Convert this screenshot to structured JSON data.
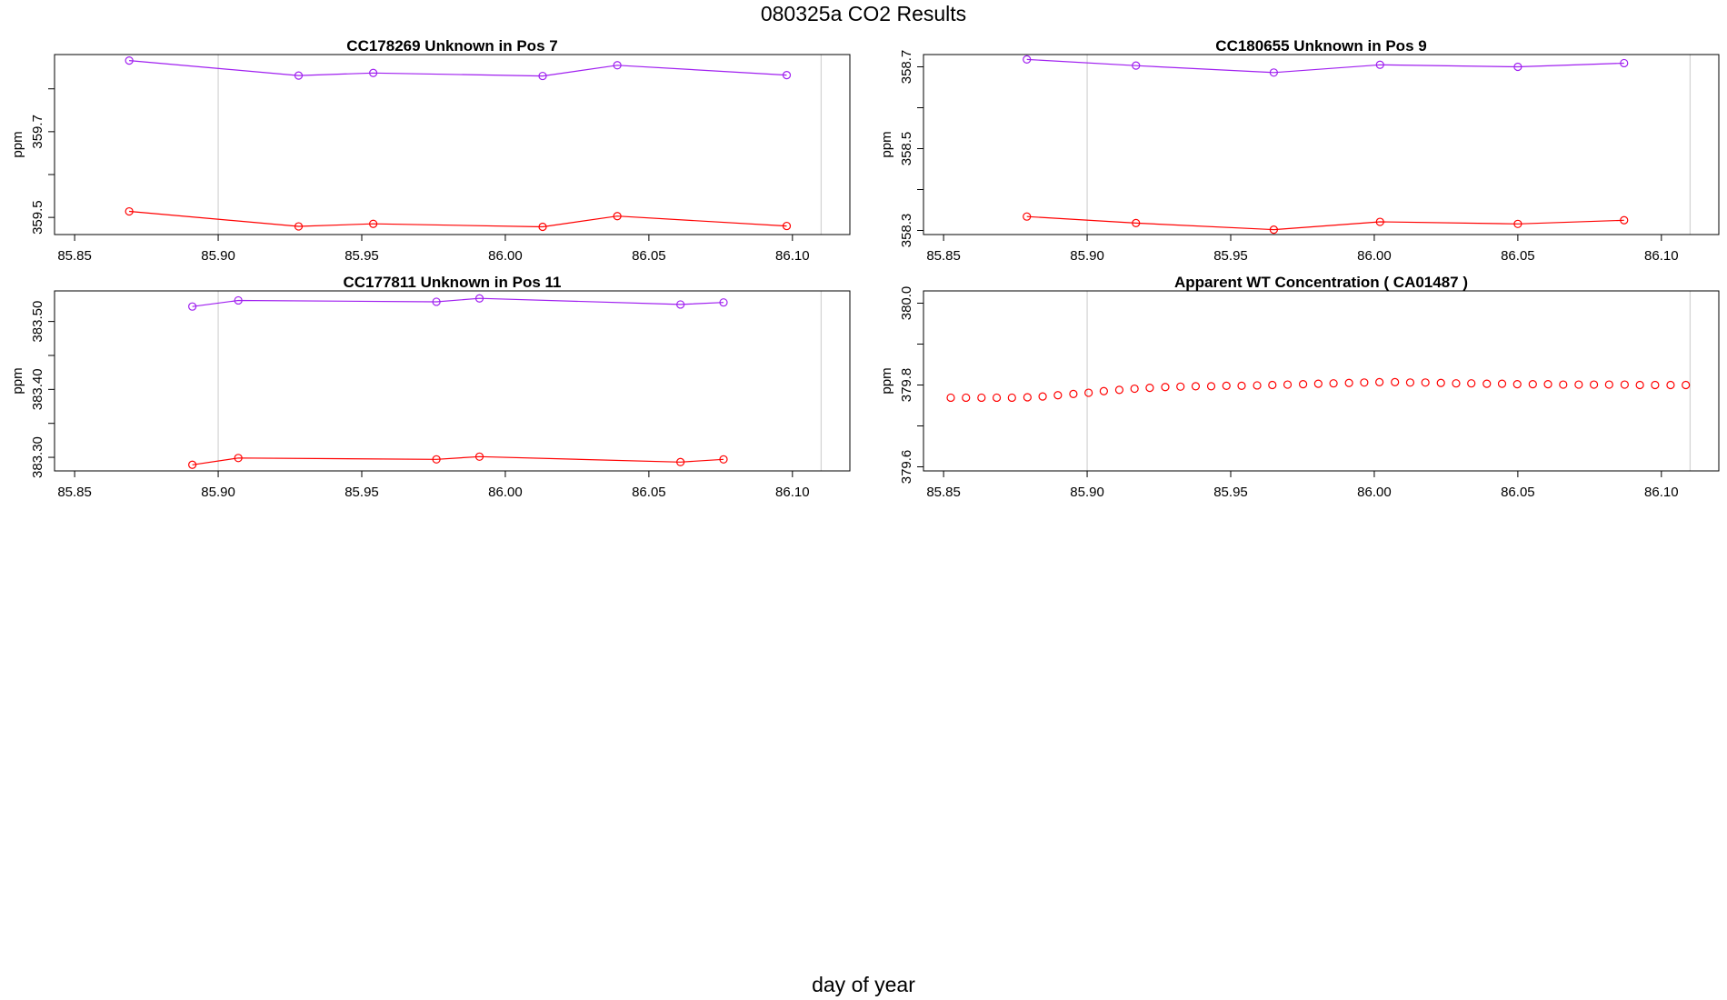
{
  "figure": {
    "title": "080325a  CO2 Results",
    "xlabel": "day of year"
  },
  "chart_data": [
    {
      "type": "line",
      "title": "CC178269    Unknown in Pos 7",
      "xlabel": "",
      "ylabel": "ppm",
      "xlim": [
        85.843,
        86.12
      ],
      "ylim": [
        359.46,
        359.88
      ],
      "xticks": [
        "85.85",
        "85.90",
        "85.95",
        "86.00",
        "86.05",
        "86.10"
      ],
      "xtick_values": [
        85.85,
        85.9,
        85.95,
        86.0,
        86.05,
        86.1
      ],
      "yticks": [
        359.5,
        359.6,
        359.7,
        359.8
      ],
      "ytick_labels": [
        "359.5",
        "",
        "359.7",
        ""
      ],
      "vlines": [
        85.9,
        86.11
      ],
      "series": [
        {
          "name": "upper",
          "color": "#a020f0",
          "x": [
            85.869,
            85.928,
            85.954,
            86.013,
            86.039,
            86.098
          ],
          "y": [
            359.866,
            359.831,
            359.837,
            359.83,
            359.855,
            359.832
          ]
        },
        {
          "name": "lower",
          "color": "#ff0000",
          "x": [
            85.869,
            85.928,
            85.954,
            86.013,
            86.039,
            86.098
          ],
          "y": [
            359.514,
            359.479,
            359.485,
            359.478,
            359.503,
            359.48
          ]
        }
      ]
    },
    {
      "type": "line",
      "title": "CC180655    Unknown in Pos 9",
      "xlabel": "",
      "ylabel": "ppm",
      "xlim": [
        85.843,
        86.12
      ],
      "ylim": [
        358.29,
        358.73
      ],
      "xticks": [
        "85.85",
        "85.90",
        "85.95",
        "86.00",
        "86.05",
        "86.10"
      ],
      "xtick_values": [
        85.85,
        85.9,
        85.95,
        86.0,
        86.05,
        86.1
      ],
      "yticks": [
        358.3,
        358.4,
        358.5,
        358.6,
        358.7
      ],
      "ytick_labels": [
        "358.3",
        "",
        "358.5",
        "",
        "358.7"
      ],
      "vlines": [
        85.9,
        86.11
      ],
      "series": [
        {
          "name": "upper",
          "color": "#a020f0",
          "x": [
            85.879,
            85.917,
            85.965,
            86.002,
            86.05,
            86.087
          ],
          "y": [
            358.718,
            358.703,
            358.686,
            358.705,
            358.7,
            358.709
          ]
        },
        {
          "name": "lower",
          "color": "#ff0000",
          "x": [
            85.879,
            85.917,
            85.965,
            86.002,
            86.05,
            86.087
          ],
          "y": [
            358.334,
            358.318,
            358.302,
            358.321,
            358.316,
            358.325
          ]
        }
      ]
    },
    {
      "type": "line",
      "title": "CC177811    Unknown in Pos 11",
      "xlabel": "",
      "ylabel": "ppm",
      "xlim": [
        85.843,
        86.12
      ],
      "ylim": [
        383.28,
        383.545
      ],
      "xticks": [
        "85.85",
        "85.90",
        "85.95",
        "86.00",
        "86.05",
        "86.10"
      ],
      "xtick_values": [
        85.85,
        85.9,
        85.95,
        86.0,
        86.05,
        86.1
      ],
      "yticks": [
        383.3,
        383.35,
        383.4,
        383.45,
        383.5
      ],
      "ytick_labels": [
        "383.30",
        "",
        "383.40",
        "",
        "383.50"
      ],
      "vlines": [
        85.9,
        86.11
      ],
      "series": [
        {
          "name": "upper",
          "color": "#a020f0",
          "x": [
            85.891,
            85.907,
            85.976,
            85.991,
            86.061,
            86.076
          ],
          "y": [
            383.522,
            383.531,
            383.529,
            383.534,
            383.525,
            383.528
          ]
        },
        {
          "name": "lower",
          "color": "#ff0000",
          "x": [
            85.891,
            85.907,
            85.976,
            85.991,
            86.061,
            86.076
          ],
          "y": [
            383.289,
            383.299,
            383.297,
            383.301,
            383.293,
            383.297
          ]
        }
      ]
    },
    {
      "type": "scatter",
      "title": "Apparent WT Concentration ( CA01487 )",
      "xlabel": "",
      "ylabel": "ppm",
      "xlim": [
        85.843,
        86.12
      ],
      "ylim": [
        379.59,
        380.03
      ],
      "xticks": [
        "85.85",
        "85.90",
        "85.95",
        "86.00",
        "86.05",
        "86.10"
      ],
      "xtick_values": [
        85.85,
        85.9,
        85.95,
        86.0,
        86.05,
        86.1
      ],
      "yticks": [
        379.6,
        379.7,
        379.8,
        379.9,
        380.0
      ],
      "ytick_labels": [
        "379.6",
        "",
        "379.8",
        "",
        "380.0"
      ],
      "vlines": [
        85.9,
        86.11
      ],
      "series": [
        {
          "name": "WT",
          "color": "#ff0000",
          "x": [
            85.8525,
            85.8578,
            85.8632,
            85.8685,
            85.8738,
            85.8792,
            85.8845,
            85.8898,
            85.8952,
            85.9005,
            85.9058,
            85.9112,
            85.9165,
            85.9218,
            85.9272,
            85.9325,
            85.9378,
            85.9432,
            85.9485,
            85.9538,
            85.9592,
            85.9645,
            85.9698,
            85.9752,
            85.9805,
            85.9858,
            85.9912,
            85.9965,
            86.0018,
            86.0072,
            86.0125,
            86.0178,
            86.0232,
            86.0285,
            86.0338,
            86.0392,
            86.0445,
            86.0498,
            86.0552,
            86.0605,
            86.0658,
            86.0712,
            86.0765,
            86.0818,
            86.0872,
            86.0925,
            86.0978,
            86.1032,
            86.1085
          ],
          "y": [
            379.769,
            379.769,
            379.769,
            379.769,
            379.769,
            379.77,
            379.772,
            379.775,
            379.778,
            379.781,
            379.785,
            379.788,
            379.791,
            379.793,
            379.795,
            379.796,
            379.797,
            379.797,
            379.798,
            379.798,
            379.799,
            379.8,
            379.801,
            379.802,
            379.803,
            379.804,
            379.805,
            379.806,
            379.807,
            379.807,
            379.806,
            379.806,
            379.805,
            379.804,
            379.804,
            379.803,
            379.803,
            379.802,
            379.802,
            379.802,
            379.801,
            379.801,
            379.801,
            379.801,
            379.801,
            379.8,
            379.8,
            379.8,
            379.8
          ]
        }
      ]
    }
  ]
}
